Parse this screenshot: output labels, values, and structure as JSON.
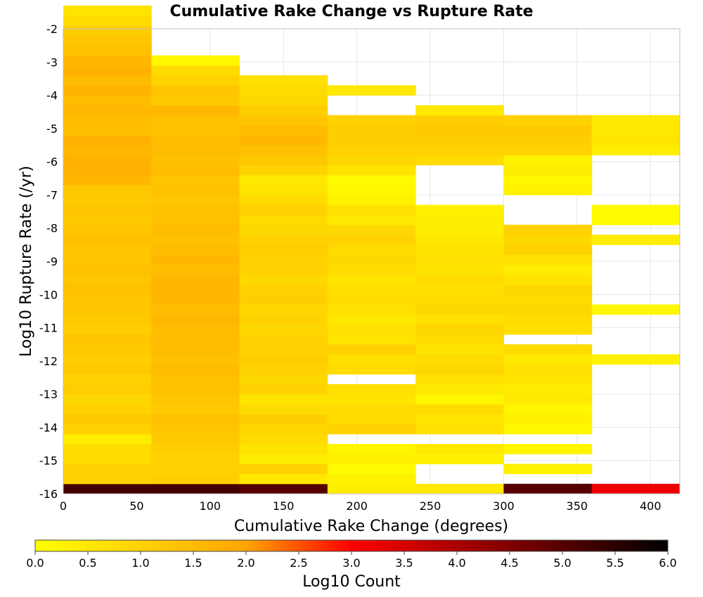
{
  "chart_data": {
    "type": "heatmap",
    "title": "Cumulative Rake Change vs Rupture Rate",
    "xlabel": "Cumulative Rake Change (degrees)",
    "ylabel": "Log10 Rupture Rate (/yr)",
    "xlim": [
      0,
      420
    ],
    "ylim": [
      -16,
      -2
    ],
    "x_ticks": [
      "0",
      "50",
      "100",
      "150",
      "200",
      "250",
      "300",
      "350",
      "400"
    ],
    "y_ticks": [
      "-2",
      "-3",
      "-4",
      "-5",
      "-6",
      "-7",
      "-8",
      "-9",
      "-10",
      "-11",
      "-12",
      "-13",
      "-14",
      "-15",
      "-16"
    ],
    "x_bin_width": 60,
    "y_bin_height": 0.3,
    "grid": true,
    "colorbar": {
      "label": "Log10 Count",
      "range": [
        0,
        6
      ],
      "ticks": [
        "0.0",
        "0.5",
        "1.0",
        "1.5",
        "2.0",
        "2.5",
        "3.0",
        "3.5",
        "4.0",
        "4.5",
        "5.0",
        "5.5",
        "6.0"
      ],
      "colors": [
        "#ffff00",
        "#ffa500",
        "#ff0000",
        "#000000"
      ]
    },
    "columns": [
      {
        "x_start": 0,
        "y_start": -16,
        "values": [
          5.2,
          1.0,
          1.0,
          0.8,
          0.8,
          0.4,
          1.0,
          1.2,
          1.0,
          0.9,
          1.1,
          1.0,
          1.2,
          1.1,
          1.2,
          1.3,
          1.1,
          1.2,
          1.3,
          1.3,
          1.4,
          1.3,
          1.4,
          1.3,
          1.3,
          1.4,
          1.3,
          1.2,
          1.3,
          1.2,
          1.2,
          1.6,
          1.7,
          1.7,
          1.6,
          1.7,
          1.4,
          1.5,
          1.6,
          1.5,
          1.7,
          1.5,
          1.7,
          1.6,
          1.4,
          1.3,
          1.1,
          0.8,
          0.6
        ]
      },
      {
        "x_start": 60,
        "y_start": -16,
        "values": [
          5.2,
          1.1,
          1.0,
          1.0,
          1.1,
          1.2,
          1.3,
          1.4,
          1.2,
          1.3,
          1.4,
          1.4,
          1.5,
          1.4,
          1.5,
          1.5,
          1.5,
          1.6,
          1.5,
          1.6,
          1.6,
          1.6,
          1.5,
          1.6,
          1.5,
          1.4,
          1.5,
          1.4,
          1.4,
          1.3,
          1.4,
          1.3,
          1.5,
          1.4,
          1.5,
          1.5,
          1.4,
          1.4,
          1.6,
          1.2,
          1.3,
          1.0,
          0.8,
          0.2
        ]
      },
      {
        "x_start": 120,
        "y_start": -16,
        "values": [
          5.0,
          0.5,
          1.0,
          0.4,
          0.6,
          0.8,
          0.9,
          1.1,
          0.8,
          0.6,
          1.0,
          0.9,
          1.0,
          1.1,
          1.0,
          1.0,
          0.9,
          1.0,
          0.9,
          1.1,
          1.0,
          0.9,
          1.0,
          1.0,
          1.1,
          1.0,
          0.9,
          0.8,
          1.0,
          0.8,
          0.6,
          0.5,
          1.0,
          1.2,
          1.4,
          1.6,
          1.5,
          1.3,
          1.1,
          0.9,
          0.8,
          0.7
        ]
      },
      {
        "x_start": 180,
        "y_start": -16,
        "values": [
          0.4,
          0.3,
          0.1,
          0.3,
          0.2,
          null,
          1.0,
          0.8,
          0.8,
          0.6,
          0.7,
          null,
          0.8,
          0.7,
          1.0,
          0.6,
          0.7,
          0.5,
          0.7,
          0.8,
          0.7,
          0.6,
          0.8,
          0.9,
          0.8,
          1.0,
          0.9,
          0.5,
          0.7,
          0.3,
          0.2,
          0.1,
          0.6,
          0.9,
          1.0,
          1.1,
          1.1,
          1.0,
          null,
          null,
          0.5
        ]
      },
      {
        "x_start": 240,
        "y_start": -16,
        "values": [
          0.5,
          null,
          null,
          0.3,
          0.5,
          null,
          0.7,
          0.6,
          0.8,
          0.2,
          0.5,
          0.7,
          0.9,
          0.8,
          0.6,
          0.8,
          0.9,
          0.7,
          0.9,
          0.8,
          0.7,
          0.8,
          0.6,
          0.7,
          0.6,
          0.5,
          0.4,
          0.4,
          0.3,
          null,
          null,
          null,
          null,
          0.8,
          1.0,
          1.1,
          1.2,
          1.1,
          0.5
        ]
      },
      {
        "x_start": 300,
        "y_start": -16,
        "values": [
          5.0,
          null,
          0.3,
          null,
          0.2,
          null,
          0.2,
          0.3,
          0.2,
          0.5,
          0.4,
          0.6,
          0.7,
          0.5,
          0.8,
          null,
          0.7,
          0.8,
          0.9,
          0.8,
          0.9,
          0.6,
          0.4,
          0.7,
          1.0,
          0.9,
          1.0,
          null,
          null,
          null,
          0.3,
          0.2,
          0.4,
          0.3,
          1.0,
          1.1,
          1.2,
          1.0
        ]
      },
      {
        "x_start": 360,
        "y_start": -16,
        "values": [
          3.2,
          null,
          null,
          null,
          null,
          null,
          null,
          null,
          null,
          null,
          null,
          null,
          null,
          0.3,
          null,
          null,
          null,
          null,
          0.2,
          null,
          null,
          null,
          null,
          null,
          null,
          0.4,
          null,
          0.1,
          0.1,
          null,
          null,
          null,
          null,
          null,
          0.4,
          0.6,
          0.5,
          0.5
        ]
      }
    ]
  }
}
